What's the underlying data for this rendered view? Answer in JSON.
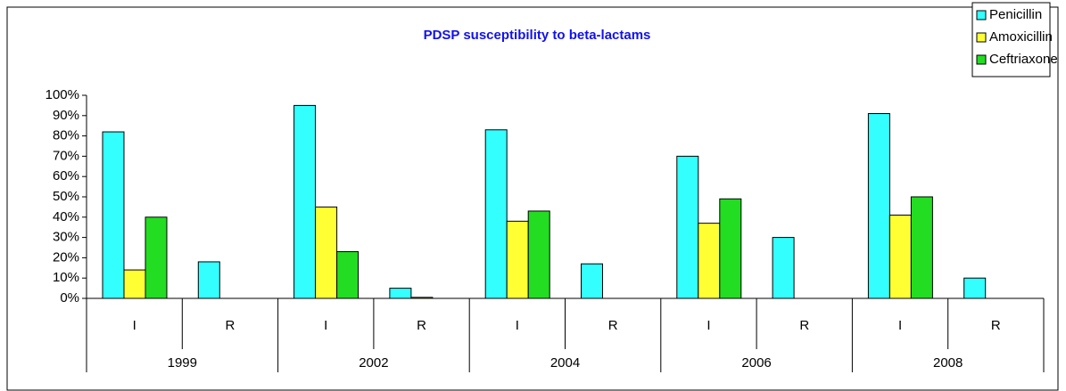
{
  "chart_data": {
    "type": "bar",
    "title": "PDSP susceptibility to beta-lactams",
    "categories": [
      "I",
      "R",
      "I",
      "R",
      "I",
      "R",
      "I",
      "R",
      "I",
      "R"
    ],
    "category_groups": [
      "1999",
      "2002",
      "2004",
      "2006",
      "2008"
    ],
    "series": [
      {
        "name": "Penicillin",
        "color": "#33ffff",
        "values": [
          82,
          18,
          95,
          5,
          83,
          17,
          70,
          30,
          91,
          10
        ]
      },
      {
        "name": "Amoxicillin",
        "color": "#ffff33",
        "values": [
          14,
          0,
          45,
          0.5,
          38,
          0,
          37,
          0,
          41,
          0
        ]
      },
      {
        "name": "Ceftriaxone",
        "color": "#22dd22",
        "values": [
          40,
          0,
          23,
          0,
          43,
          0,
          49,
          0,
          50,
          0
        ]
      }
    ],
    "ylim": [
      0,
      100
    ],
    "yticks": [
      {
        "value": 0,
        "label": "0%"
      },
      {
        "value": 10,
        "label": "10%"
      },
      {
        "value": 20,
        "label": "20%"
      },
      {
        "value": 30,
        "label": "30%"
      },
      {
        "value": 40,
        "label": "40%"
      },
      {
        "value": 50,
        "label": "50%"
      },
      {
        "value": 60,
        "label": "60%"
      },
      {
        "value": 70,
        "label": "70%"
      },
      {
        "value": 80,
        "label": "80%"
      },
      {
        "value": 90,
        "label": "90%"
      },
      {
        "value": 100,
        "label": "100%"
      }
    ],
    "grid": false,
    "legend": "top-right"
  }
}
